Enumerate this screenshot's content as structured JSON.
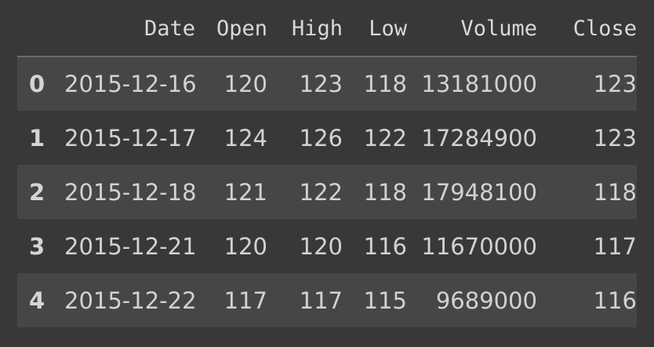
{
  "table": {
    "index_header": "",
    "columns": [
      "Date",
      "Open",
      "High",
      "Low",
      "Volume",
      "Close"
    ],
    "rows": [
      {
        "index": "0",
        "cells": [
          "2015-12-16",
          "120",
          "123",
          "118",
          "13181000",
          "123"
        ]
      },
      {
        "index": "1",
        "cells": [
          "2015-12-17",
          "124",
          "126",
          "122",
          "17284900",
          "123"
        ]
      },
      {
        "index": "2",
        "cells": [
          "2015-12-18",
          "121",
          "122",
          "118",
          "17948100",
          "118"
        ]
      },
      {
        "index": "3",
        "cells": [
          "2015-12-21",
          "120",
          "120",
          "116",
          "11670000",
          "117"
        ]
      },
      {
        "index": "4",
        "cells": [
          "2015-12-22",
          "117",
          "117",
          "115",
          "9689000",
          "116"
        ]
      }
    ]
  }
}
